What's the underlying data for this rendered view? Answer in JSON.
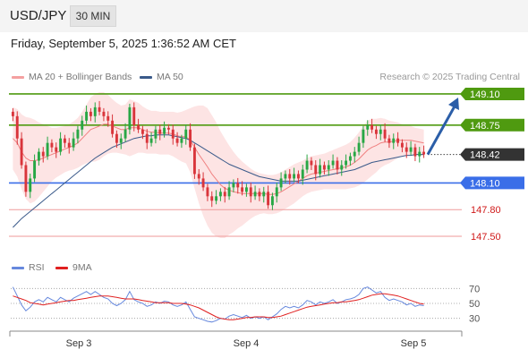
{
  "header": {
    "symbol": "USD/JPY",
    "timeframe": "30 MIN"
  },
  "datetime": "Friday, September 5, 2025 1:36:52 AM CET",
  "legend": [
    {
      "label": "MA 20 + Bollinger Bands",
      "color": "#f08080"
    },
    {
      "label": "MA 50",
      "color": "#3a5a8a"
    }
  ],
  "copyright": "Research © 2025 Trading Central",
  "rsi_legend": [
    {
      "label": "RSI",
      "color": "#6688dd"
    },
    {
      "label": "9MA",
      "color": "#e02020"
    }
  ],
  "chart_data": {
    "type": "candlestick",
    "ylim": [
      147.4,
      149.15
    ],
    "x_ticks": [
      "Sep 3",
      "Sep 4",
      "Sep 5"
    ],
    "levels": [
      {
        "value": 149.1,
        "label": "149.10",
        "kind": "resistance"
      },
      {
        "value": 148.75,
        "label": "148.75",
        "kind": "resistance"
      },
      {
        "value": 148.42,
        "label": "148.42",
        "kind": "current"
      },
      {
        "value": 148.1,
        "label": "148.10",
        "kind": "support"
      },
      {
        "value": 147.8,
        "label": "147.80",
        "kind": "support-minor"
      },
      {
        "value": 147.5,
        "label": "147.50",
        "kind": "support-minor"
      }
    ],
    "projection": {
      "from": 148.42,
      "to": 149.1,
      "direction": "up"
    },
    "close": [
      148.85,
      148.6,
      148.3,
      148.0,
      148.15,
      148.35,
      148.45,
      148.4,
      148.55,
      148.5,
      148.45,
      148.6,
      148.55,
      148.5,
      148.6,
      148.7,
      148.8,
      148.9,
      148.85,
      148.95,
      148.9,
      148.85,
      148.8,
      148.65,
      148.55,
      148.6,
      148.7,
      148.95,
      148.75,
      148.7,
      148.65,
      148.55,
      148.6,
      148.7,
      148.65,
      148.72,
      148.7,
      148.6,
      148.55,
      148.6,
      148.7,
      148.5,
      148.2,
      148.15,
      148.05,
      147.95,
      147.9,
      147.95,
      148.0,
      147.95,
      148.05,
      148.1,
      148.05,
      148.0,
      148.05,
      147.95,
      148.0,
      147.95,
      148.0,
      147.85,
      147.95,
      148.05,
      148.15,
      148.2,
      148.15,
      148.2,
      148.15,
      148.25,
      148.35,
      148.3,
      148.2,
      148.3,
      148.25,
      148.3,
      148.35,
      148.25,
      148.3,
      148.35,
      148.4,
      148.45,
      148.55,
      148.7,
      148.75,
      148.7,
      148.65,
      148.7,
      148.6,
      148.55,
      148.6,
      148.55,
      148.5,
      148.45,
      148.5,
      148.4,
      148.45,
      148.42
    ],
    "ma20": [
      148.6,
      148.55,
      148.45,
      148.38,
      148.35,
      148.35,
      148.36,
      148.38,
      148.4,
      148.42,
      148.44,
      148.46,
      148.48,
      148.5,
      148.52,
      148.55,
      148.6,
      148.65,
      148.7,
      148.72,
      148.74,
      148.76,
      148.76,
      148.74,
      148.72,
      148.7,
      148.7,
      148.72,
      148.72,
      148.72,
      148.7,
      148.68,
      148.67,
      148.67,
      148.66,
      148.66,
      148.66,
      148.65,
      148.63,
      148.62,
      148.62,
      148.58,
      148.5,
      148.42,
      148.35,
      148.28,
      148.2,
      148.14,
      148.08,
      148.04,
      148.02,
      148.0,
      147.99,
      147.98,
      147.98,
      147.98,
      147.98,
      147.98,
      147.98,
      147.97,
      147.97,
      147.98,
      148.0,
      148.03,
      148.06,
      148.09,
      148.12,
      148.15,
      148.18,
      148.2,
      148.21,
      148.22,
      148.23,
      148.24,
      148.25,
      148.26,
      148.27,
      148.28,
      148.3,
      148.33,
      148.37,
      148.42,
      148.47,
      148.5,
      148.52,
      148.55,
      148.56,
      148.56,
      148.57,
      148.58,
      148.58,
      148.58,
      148.58,
      148.57,
      148.56,
      148.55
    ],
    "ma50": [
      147.6,
      147.65,
      147.7,
      147.74,
      147.78,
      147.82,
      147.86,
      147.9,
      147.94,
      147.98,
      148.02,
      148.06,
      148.1,
      148.14,
      148.18,
      148.22,
      148.26,
      148.3,
      148.34,
      148.38,
      148.41,
      148.44,
      148.47,
      148.5,
      148.52,
      148.54,
      148.56,
      148.58,
      148.6,
      148.61,
      148.62,
      148.63,
      148.63,
      148.64,
      148.64,
      148.64,
      148.64,
      148.63,
      148.62,
      148.61,
      148.6,
      148.58,
      148.55,
      148.52,
      148.49,
      148.46,
      148.43,
      148.4,
      148.37,
      148.34,
      148.31,
      148.29,
      148.27,
      148.25,
      148.23,
      148.21,
      148.19,
      148.17,
      148.16,
      148.15,
      148.14,
      148.13,
      148.12,
      148.12,
      148.12,
      148.12,
      148.12,
      148.13,
      148.14,
      148.15,
      148.16,
      148.17,
      148.18,
      148.19,
      148.2,
      148.21,
      148.22,
      148.23,
      148.24,
      148.25,
      148.27,
      148.29,
      148.31,
      148.33,
      148.34,
      148.35,
      148.36,
      148.37,
      148.38,
      148.39,
      148.4,
      148.41,
      148.41,
      148.42,
      148.42,
      148.42
    ],
    "bb_width": [
      0.35,
      0.38,
      0.42,
      0.46,
      0.48,
      0.46,
      0.42,
      0.38,
      0.34,
      0.3,
      0.28,
      0.27,
      0.26,
      0.26,
      0.27,
      0.28,
      0.3,
      0.33,
      0.36,
      0.38,
      0.38,
      0.36,
      0.33,
      0.3,
      0.28,
      0.27,
      0.28,
      0.32,
      0.3,
      0.28,
      0.26,
      0.25,
      0.24,
      0.24,
      0.24,
      0.24,
      0.24,
      0.25,
      0.26,
      0.28,
      0.3,
      0.36,
      0.46,
      0.55,
      0.62,
      0.66,
      0.66,
      0.64,
      0.6,
      0.56,
      0.5,
      0.45,
      0.4,
      0.36,
      0.32,
      0.28,
      0.25,
      0.23,
      0.22,
      0.22,
      0.22,
      0.22,
      0.22,
      0.22,
      0.22,
      0.22,
      0.21,
      0.2,
      0.2,
      0.2,
      0.2,
      0.2,
      0.2,
      0.21,
      0.22,
      0.23,
      0.24,
      0.25,
      0.26,
      0.28,
      0.3,
      0.32,
      0.33,
      0.32,
      0.3,
      0.28,
      0.26,
      0.24,
      0.22,
      0.2,
      0.18,
      0.17,
      0.16,
      0.15,
      0.15,
      0.15
    ],
    "rsi": {
      "ylim": [
        20,
        80
      ],
      "levels": [
        70,
        50,
        30
      ],
      "rsi": [
        72,
        60,
        48,
        40,
        45,
        52,
        55,
        52,
        58,
        55,
        52,
        58,
        55,
        52,
        57,
        60,
        63,
        66,
        62,
        66,
        62,
        58,
        56,
        50,
        47,
        50,
        55,
        66,
        55,
        52,
        50,
        46,
        48,
        52,
        50,
        53,
        52,
        48,
        46,
        48,
        52,
        42,
        32,
        30,
        28,
        26,
        25,
        27,
        30,
        29,
        33,
        35,
        33,
        31,
        34,
        30,
        32,
        30,
        32,
        28,
        32,
        36,
        42,
        46,
        44,
        46,
        44,
        48,
        54,
        52,
        48,
        52,
        50,
        52,
        55,
        50,
        52,
        55,
        56,
        58,
        62,
        70,
        72,
        68,
        64,
        66,
        58,
        54,
        56,
        54,
        52,
        48,
        50,
        46,
        48,
        47
      ],
      "ma": [
        60,
        58,
        56,
        54,
        51,
        50,
        49,
        48,
        49,
        50,
        51,
        52,
        53,
        54,
        54,
        55,
        56,
        57,
        58,
        59,
        60,
        60,
        60,
        59,
        58,
        57,
        56,
        56,
        56,
        55,
        54,
        53,
        52,
        51,
        51,
        51,
        51,
        50,
        50,
        50,
        49,
        48,
        46,
        44,
        41,
        38,
        35,
        32,
        30,
        29,
        28,
        28,
        29,
        30,
        31,
        31,
        32,
        32,
        32,
        31,
        31,
        32,
        33,
        35,
        37,
        39,
        41,
        43,
        45,
        46,
        47,
        48,
        49,
        50,
        51,
        51,
        52,
        52,
        53,
        54,
        55,
        57,
        59,
        61,
        62,
        63,
        63,
        62,
        61,
        60,
        58,
        56,
        54,
        52,
        50,
        49
      ]
    }
  }
}
